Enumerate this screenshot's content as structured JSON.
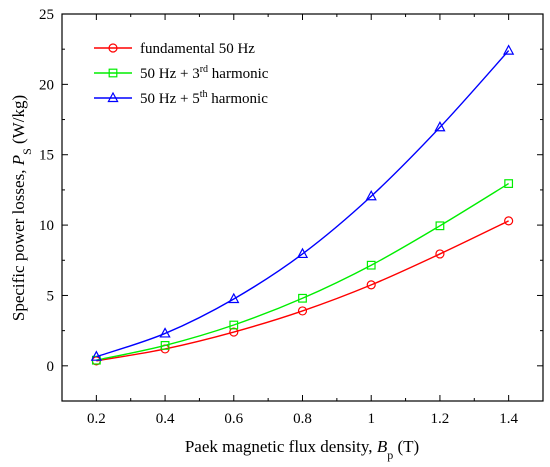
{
  "chart_data": {
    "type": "line",
    "x": [
      0.2,
      0.4,
      0.6,
      0.8,
      1.0,
      1.2,
      1.4
    ],
    "x_tick_labels": [
      "0.2",
      "0.4",
      "0.6",
      "0.8",
      "1",
      "1.2",
      "1.4"
    ],
    "y_tick_labels": [
      "0",
      "5",
      "10",
      "15",
      "20",
      "25"
    ],
    "xlim": [
      0.1,
      1.5
    ],
    "ylim": [
      -2.5,
      25
    ],
    "y_ticks": [
      0,
      5,
      10,
      15,
      20,
      25
    ],
    "xlabel": {
      "main": "Paek magnetic flux density, ",
      "var": "B",
      "sub": "p",
      "unit": " (T)"
    },
    "ylabel": {
      "main": "Specific power losses, ",
      "var": "P",
      "sub": "S",
      "unit": " (W/kg)"
    },
    "legend_position": "top-left",
    "grid": false,
    "series": [
      {
        "name": "fundamental 50 Hz",
        "legend": {
          "pre": "fundamental 50 Hz",
          "sup": "",
          "post": ""
        },
        "color": "#ff0000",
        "marker": "circle",
        "values": [
          0.35,
          1.2,
          2.4,
          3.9,
          5.75,
          7.95,
          10.3
        ]
      },
      {
        "name": "50 Hz + 3rd harmonic",
        "legend": {
          "pre": "50 Hz + 3",
          "sup": "rd",
          "post": " harmonic"
        },
        "color": "#00ee00",
        "marker": "square",
        "values": [
          0.4,
          1.45,
          2.9,
          4.8,
          7.15,
          9.95,
          12.95
        ]
      },
      {
        "name": "50 Hz + 5th harmonic",
        "legend": {
          "pre": "50 Hz + 5",
          "sup": "th",
          "post": " harmonic"
        },
        "color": "#0000ff",
        "marker": "triangle",
        "values": [
          0.65,
          2.3,
          4.75,
          7.95,
          12.05,
          16.95,
          22.4
        ]
      }
    ]
  }
}
